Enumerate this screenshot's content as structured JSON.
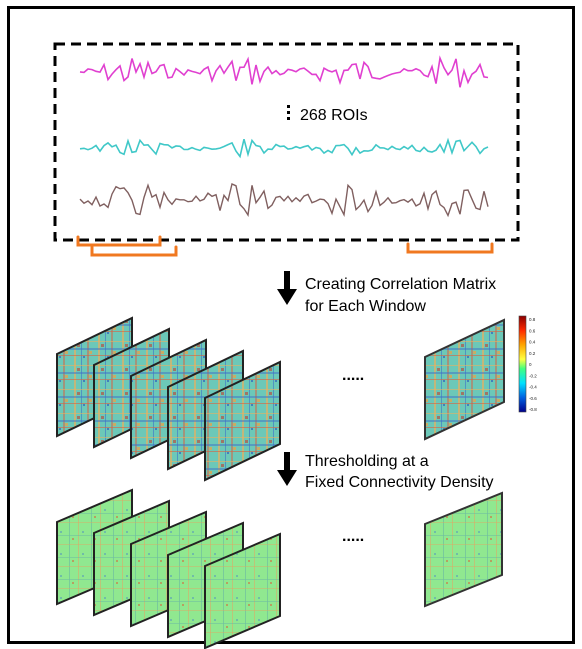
{
  "roi_label": "268 ROIs",
  "step1": {
    "line1": "Creating Correlation Matrix",
    "line2": "for Each Window"
  },
  "step2": {
    "line1": "Thresholding at a",
    "line2": "Fixed Connectivity Density"
  },
  "ellipsis": ".....",
  "colorbar": {
    "ticks": [
      "0.8",
      "0.6",
      "0.4",
      "0.2",
      "0",
      "-0.2",
      "-0.4",
      "-0.6",
      "-0.8"
    ],
    "colors": [
      "#8b0000",
      "#ff2a00",
      "#ffa500",
      "#ffff40",
      "#40ff80",
      "#00e0ff",
      "#0090ff",
      "#0030d0",
      "#00008b"
    ]
  },
  "colors": {
    "signal_top": "#e040d0",
    "signal_mid": "#40c8c8",
    "signal_bottom": "#806060",
    "window_bracket": "#f07820",
    "arrow": "#000000"
  }
}
